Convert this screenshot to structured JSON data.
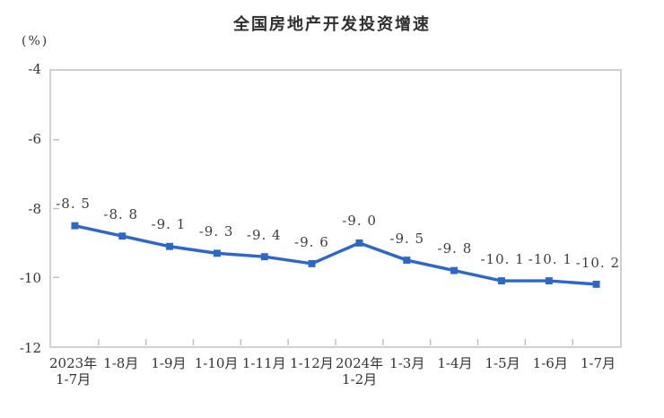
{
  "header": {
    "title": "全国房地产开发投资增速",
    "unit_label": "(%)"
  },
  "colors": {
    "line": "#2E68C6",
    "axis_border": "#D1D1D1",
    "tick": "#BFBFBF",
    "text": "#333333",
    "background": "#FFFFFF"
  },
  "chart_data": {
    "type": "line",
    "title": "全国房地产开发投资增速",
    "ylabel": "(%)",
    "xlabel": "",
    "grid": false,
    "legend_position": "none",
    "marker": "square",
    "categories": [
      "2023年\n1-7月",
      "1-8月",
      "1-9月",
      "1-10月",
      "1-11月",
      "1-12月",
      "2024年\n1-2月",
      "1-3月",
      "1-4月",
      "1-5月",
      "1-6月",
      "1-7月"
    ],
    "series": [
      {
        "name": "全国房地产开发投资增速",
        "color": "#2E68C6",
        "values": [
          -8.5,
          -8.8,
          -9.1,
          -9.3,
          -9.4,
          -9.6,
          -9.0,
          -9.5,
          -9.8,
          -10.1,
          -10.1,
          -10.2
        ],
        "labels": [
          "-8. 5",
          "-8. 8",
          "-9. 1",
          "-9. 3",
          "-9. 4",
          "-9. 6",
          "-9. 0",
          "-9. 5",
          "-9. 8",
          "-10. 1",
          "-10. 1",
          "-10. 2"
        ]
      }
    ],
    "ylim": [
      -12,
      -4
    ],
    "yticks": [
      -4,
      -6,
      -8,
      -10,
      -12
    ]
  }
}
